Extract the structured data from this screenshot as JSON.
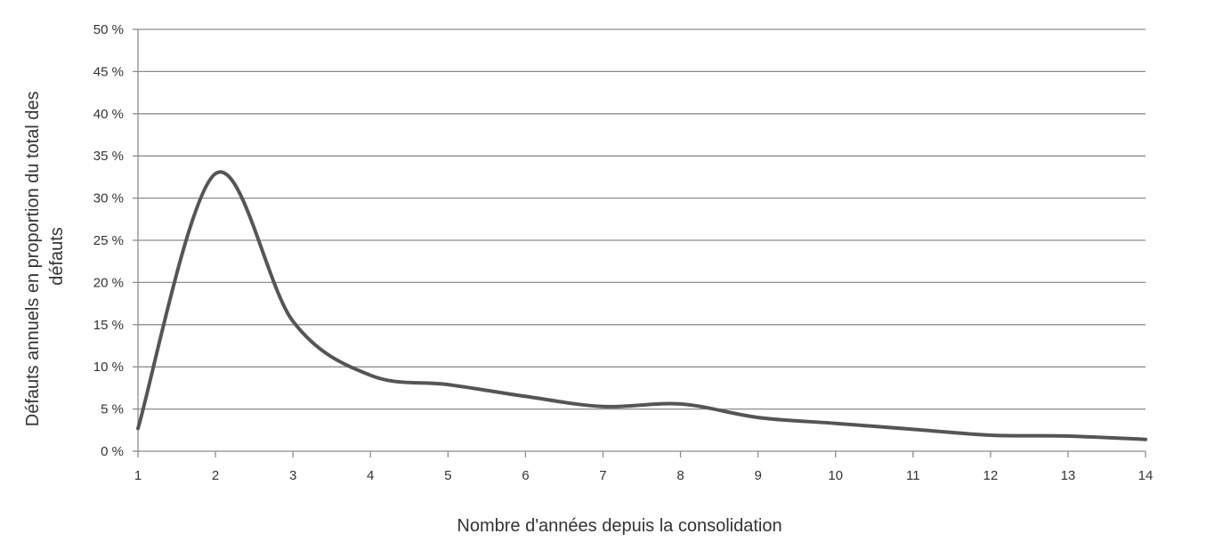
{
  "chart_data": {
    "type": "line",
    "title": "",
    "xlabel": "Nombre d'années depuis la consolidation",
    "ylabel_lines": [
      "Défauts annuels en proportion du total des",
      "défauts"
    ],
    "x": [
      1,
      2,
      3,
      4,
      5,
      6,
      7,
      8,
      9,
      10,
      11,
      12,
      13,
      14
    ],
    "x_tick_labels": [
      "1",
      "2",
      "3",
      "4",
      "5",
      "6",
      "7",
      "8",
      "9",
      "10",
      "11",
      "12",
      "13",
      "14"
    ],
    "y_ticks": [
      0,
      5,
      10,
      15,
      20,
      25,
      30,
      35,
      40,
      45,
      50
    ],
    "y_tick_labels": [
      "0 %",
      "5 %",
      "10 %",
      "15 %",
      "20 %",
      "25 %",
      "30 %",
      "35 %",
      "40 %",
      "45 %",
      "50 %"
    ],
    "xlim": [
      1,
      14
    ],
    "ylim": [
      0,
      50
    ],
    "grid": true,
    "smooth": true,
    "series": [
      {
        "values": [
          2.7,
          32.9,
          15.4,
          9.0,
          7.9,
          6.5,
          5.3,
          5.6,
          4.0,
          3.3,
          2.6,
          1.9,
          1.8,
          1.4
        ],
        "color": "#555555"
      }
    ]
  }
}
